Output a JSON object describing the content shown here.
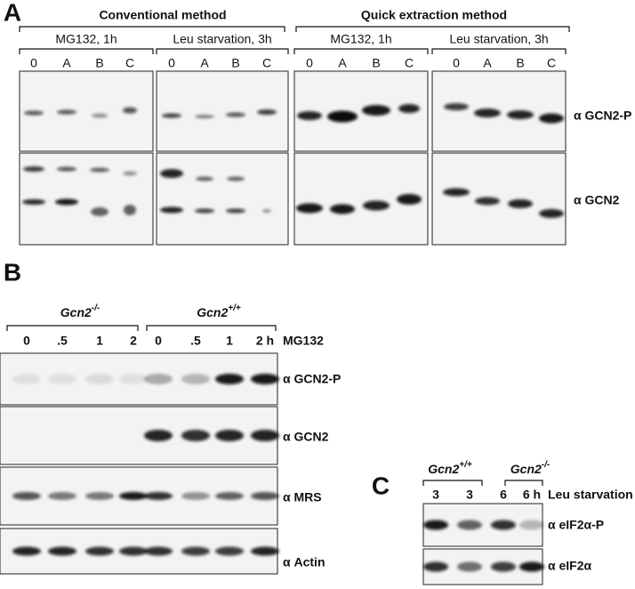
{
  "panel_a": {
    "label": "A",
    "methods": [
      "Conventional method",
      "Quick extraction method"
    ],
    "conditions": [
      "MG132, 1h",
      "Leu starvation, 3h",
      "MG132, 1h",
      "Leu starvation, 3h"
    ],
    "lanes": [
      "0",
      "A",
      "B",
      "C"
    ],
    "rows": [
      "α GCN2-P",
      "α GCN2"
    ]
  },
  "panel_b": {
    "label": "B",
    "genotypes": [
      {
        "gene": "Gcn2",
        "sup": "-/-"
      },
      {
        "gene": "Gcn2",
        "sup": "+/+"
      }
    ],
    "lanes": [
      "0",
      ".5",
      "1",
      "2",
      "0",
      ".5",
      "1",
      "2 h"
    ],
    "treatment": "MG132",
    "rows": [
      "α GCN2-P",
      "α GCN2",
      "α MRS",
      "α Actin"
    ]
  },
  "panel_c": {
    "label": "C",
    "genotypes": [
      {
        "gene": "Gcn2",
        "sup": "+/+"
      },
      {
        "gene": "Gcn2",
        "sup": "-/-"
      }
    ],
    "lanes": [
      "3",
      "3",
      "6",
      "6 h"
    ],
    "treatment": "Leu starvation",
    "rows": [
      "α eIF2α-P",
      "α eIF2α"
    ]
  }
}
